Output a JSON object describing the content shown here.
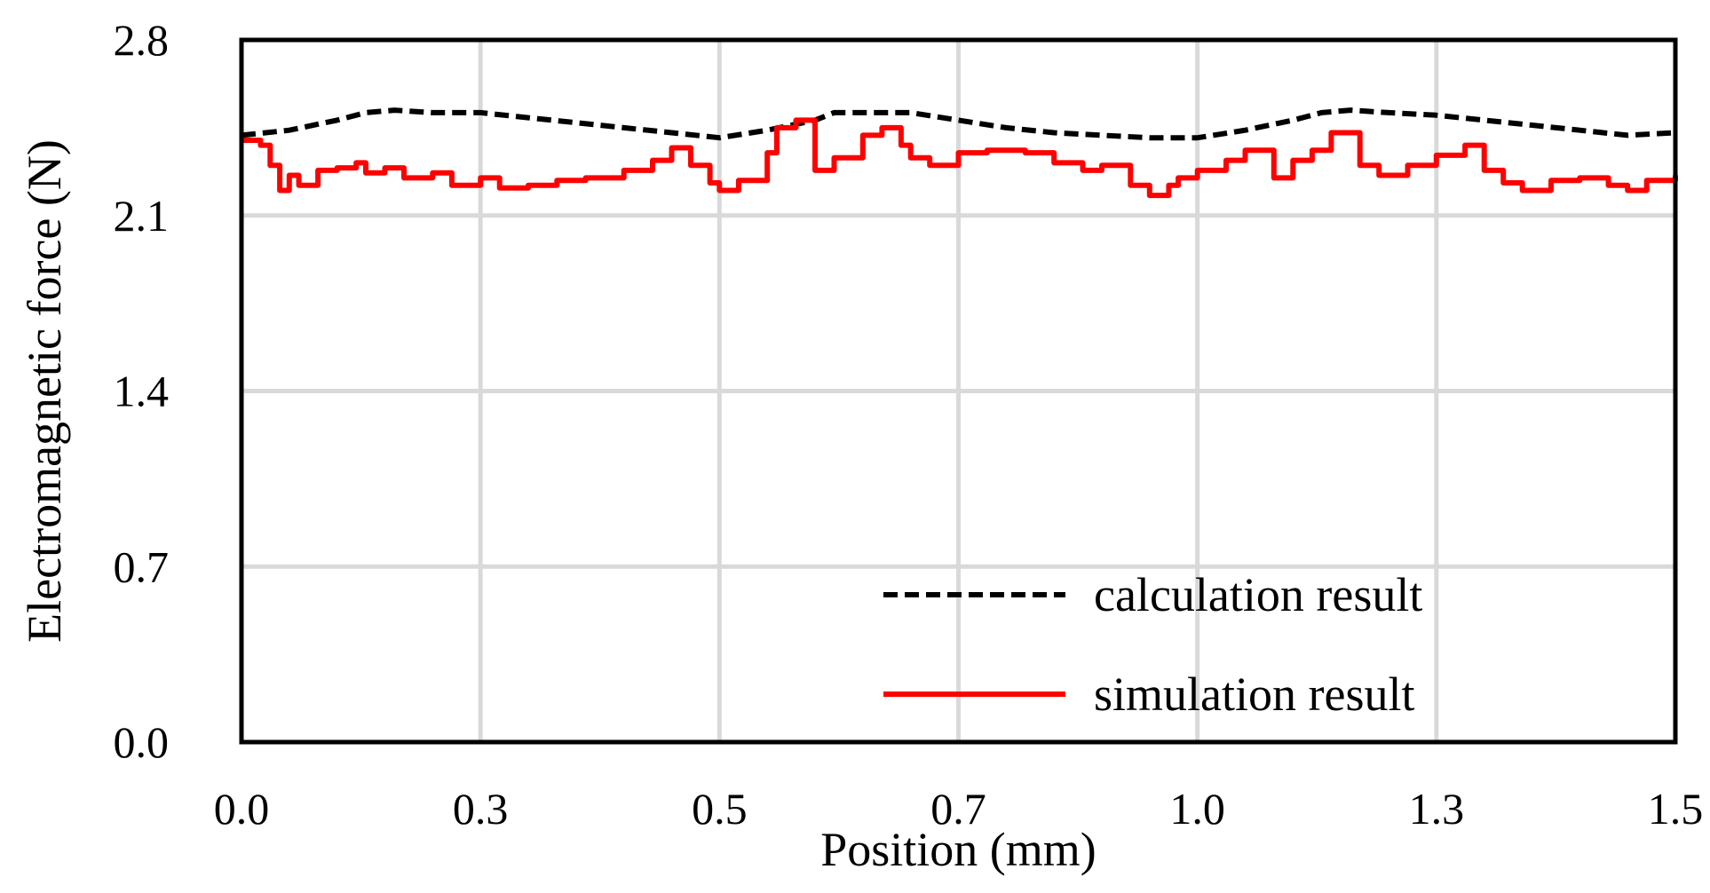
{
  "chart_data": {
    "type": "line",
    "title": "",
    "xlabel": "Position (mm)",
    "ylabel": "Electromagnetic force (N)",
    "xlim": [
      0,
      1.5
    ],
    "ylim": [
      0,
      2.8
    ],
    "x_ticks": [
      0.0,
      0.25,
      0.5,
      0.75,
      1.0,
      1.25,
      1.5
    ],
    "x_tick_labels": [
      "0.0",
      "0.3",
      "0.5",
      "0.7",
      "1.0",
      "1.3",
      "1.5"
    ],
    "y_ticks": [
      0.0,
      0.7,
      1.4,
      2.1,
      2.8
    ],
    "y_tick_labels": [
      "0.0",
      "0.7",
      "1.4",
      "2.1",
      "2.8"
    ],
    "grid": true,
    "legend_position": "bottom-right",
    "series": [
      {
        "name": "calculation result",
        "color": "#000000",
        "style": "dashed",
        "x": [
          0.0,
          0.05,
          0.1,
          0.13,
          0.16,
          0.2,
          0.25,
          0.3,
          0.35,
          0.4,
          0.45,
          0.5,
          0.55,
          0.6,
          0.62,
          0.65,
          0.7,
          0.75,
          0.8,
          0.85,
          0.9,
          0.95,
          1.0,
          1.05,
          1.1,
          1.13,
          1.16,
          1.2,
          1.25,
          1.3,
          1.35,
          1.4,
          1.45,
          1.5
        ],
        "values": [
          2.42,
          2.44,
          2.48,
          2.51,
          2.52,
          2.51,
          2.51,
          2.49,
          2.47,
          2.45,
          2.43,
          2.41,
          2.44,
          2.48,
          2.51,
          2.51,
          2.51,
          2.48,
          2.45,
          2.43,
          2.42,
          2.41,
          2.41,
          2.44,
          2.48,
          2.51,
          2.52,
          2.51,
          2.5,
          2.48,
          2.46,
          2.44,
          2.42,
          2.43
        ]
      },
      {
        "name": "simulation result",
        "color": "#ff0000",
        "style": "solid",
        "x": [
          0.0,
          0.02,
          0.03,
          0.04,
          0.05,
          0.06,
          0.08,
          0.1,
          0.12,
          0.13,
          0.15,
          0.17,
          0.2,
          0.22,
          0.25,
          0.27,
          0.3,
          0.33,
          0.36,
          0.4,
          0.43,
          0.45,
          0.47,
          0.49,
          0.5,
          0.52,
          0.55,
          0.56,
          0.58,
          0.6,
          0.62,
          0.65,
          0.67,
          0.69,
          0.7,
          0.72,
          0.75,
          0.78,
          0.82,
          0.85,
          0.88,
          0.9,
          0.93,
          0.95,
          0.97,
          0.98,
          1.0,
          1.03,
          1.05,
          1.08,
          1.1,
          1.12,
          1.14,
          1.17,
          1.19,
          1.22,
          1.25,
          1.28,
          1.3,
          1.32,
          1.34,
          1.37,
          1.4,
          1.43,
          1.45,
          1.47,
          1.5
        ],
        "values": [
          2.4,
          2.38,
          2.3,
          2.2,
          2.26,
          2.22,
          2.28,
          2.29,
          2.31,
          2.27,
          2.29,
          2.25,
          2.27,
          2.22,
          2.25,
          2.21,
          2.22,
          2.24,
          2.25,
          2.28,
          2.32,
          2.37,
          2.3,
          2.23,
          2.2,
          2.24,
          2.35,
          2.45,
          2.48,
          2.28,
          2.33,
          2.42,
          2.45,
          2.38,
          2.33,
          2.3,
          2.35,
          2.36,
          2.35,
          2.31,
          2.28,
          2.3,
          2.22,
          2.18,
          2.22,
          2.25,
          2.28,
          2.32,
          2.36,
          2.25,
          2.32,
          2.36,
          2.43,
          2.3,
          2.26,
          2.3,
          2.34,
          2.38,
          2.28,
          2.23,
          2.2,
          2.24,
          2.25,
          2.22,
          2.2,
          2.24,
          2.26
        ]
      }
    ]
  }
}
